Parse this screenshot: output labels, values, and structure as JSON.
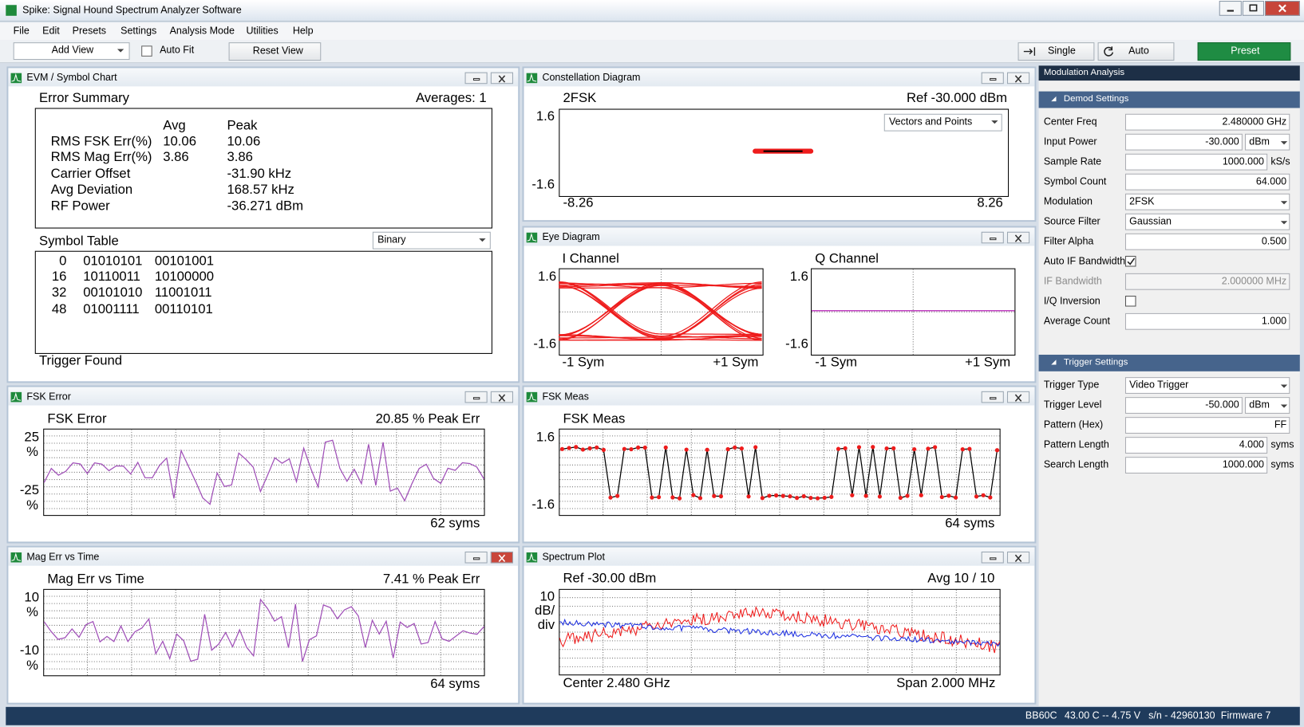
{
  "window": {
    "title": "Spike: Signal Hound Spectrum Analyzer Software"
  },
  "menu": [
    "File",
    "Edit",
    "Presets",
    "Settings",
    "Analysis Mode",
    "Utilities",
    "Help"
  ],
  "toolbar": {
    "add_view": "Add View",
    "auto_fit": "Auto Fit",
    "reset_view": "Reset View",
    "single": "Single",
    "auto": "Auto",
    "preset": "Preset"
  },
  "panels": {
    "evm": {
      "title": "EVM / Symbol Chart",
      "error_summary": "Error Summary",
      "averages": "Averages: 1",
      "headers": [
        "Avg",
        "Peak"
      ],
      "rows": [
        [
          "RMS FSK Err(%)",
          "10.06",
          "10.06"
        ],
        [
          "RMS Mag Err(%)",
          "3.86",
          "3.86"
        ],
        [
          "Carrier Offset",
          "-31.90 kHz"
        ],
        [
          "Avg Deviation",
          "168.57 kHz"
        ],
        [
          "RF Power",
          "-36.271 dBm"
        ]
      ],
      "symbol_table": "Symbol Table",
      "format": "Binary",
      "symbols": [
        [
          "0",
          "01010101",
          "00101001"
        ],
        [
          "16",
          "10110011",
          "10100000"
        ],
        [
          "32",
          "00101010",
          "11001011"
        ],
        [
          "48",
          "01001111",
          "00110101"
        ]
      ],
      "trigger": "Trigger Found"
    },
    "constellation": {
      "title": "Constellation Diagram",
      "mode": "2FSK",
      "ref": "Ref -30.000 dBm",
      "view": "Vectors and Points",
      "y": [
        "1.6",
        "-1.6"
      ],
      "x": [
        "-8.26",
        "8.26"
      ]
    },
    "eye": {
      "title": "Eye Diagram",
      "i": {
        "title": "I Channel",
        "y": [
          "1.6",
          "-1.6"
        ],
        "x": [
          "-1 Sym",
          "+1 Sym"
        ]
      },
      "q": {
        "title": "Q Channel",
        "y": [
          "1.6",
          "-1.6"
        ],
        "x": [
          "-1 Sym",
          "+1 Sym"
        ]
      }
    },
    "fsk_error": {
      "title": "FSK Error",
      "heading": "FSK Error",
      "peak": "20.85 % Peak Err",
      "y_top": [
        "25",
        "%"
      ],
      "y_bottom": [
        "-25",
        "%"
      ],
      "footer": "62 syms"
    },
    "fsk_meas": {
      "title": "FSK Meas",
      "heading": "FSK Meas",
      "y": [
        "1.6",
        "-1.6"
      ],
      "footer": "64 syms"
    },
    "mag_err": {
      "title": "Mag Err vs Time",
      "heading": "Mag Err vs Time",
      "peak": "7.41 % Peak Err",
      "y_top": [
        "10",
        "%"
      ],
      "y_bottom": [
        "-10",
        "%"
      ],
      "footer": "64 syms"
    },
    "spectrum": {
      "title": "Spectrum Plot",
      "ref": "Ref -30.00 dBm",
      "avg": "Avg 10 / 10",
      "y": [
        "10",
        "dB/",
        "div"
      ],
      "center": "Center 2.480 GHz",
      "span": "Span 2.000 MHz"
    }
  },
  "sidebar": {
    "title": "Modulation Analysis",
    "demod": {
      "title": "Demod Settings",
      "fields": [
        {
          "label": "Center Freq",
          "value": "2.480000 GHz"
        },
        {
          "label": "Input Power",
          "value": "-30.000",
          "unit": "dBm"
        },
        {
          "label": "Sample Rate",
          "value": "1000.000",
          "suffix": "kS/s"
        },
        {
          "label": "Symbol Count",
          "value": "64.000"
        },
        {
          "label": "Modulation",
          "value": "2FSK",
          "select": true
        },
        {
          "label": "Source Filter",
          "value": "Gaussian",
          "select": true
        },
        {
          "label": "Filter Alpha",
          "value": "0.500"
        },
        {
          "label": "Auto IF Bandwidth",
          "checked": true
        },
        {
          "label": "IF Bandwidth",
          "value": "2.000000 MHz",
          "disabled": true
        },
        {
          "label": "I/Q Inversion",
          "checked": false
        },
        {
          "label": "Average Count",
          "value": "1.000"
        }
      ]
    },
    "trigger": {
      "title": "Trigger Settings",
      "fields": [
        {
          "label": "Trigger Type",
          "value": "Video Trigger",
          "select": true
        },
        {
          "label": "Trigger Level",
          "value": "-50.000",
          "unit": "dBm"
        },
        {
          "label": "Pattern (Hex)",
          "value": "FF"
        },
        {
          "label": "Pattern Length",
          "value": "4.000",
          "suffix": "syms"
        },
        {
          "label": "Search Length",
          "value": "1000.000",
          "suffix": "syms"
        }
      ]
    }
  },
  "status": [
    "BB60C",
    "43.00 C -- 4.75 V",
    "s/n - 42960130",
    "Firmware 7"
  ]
}
